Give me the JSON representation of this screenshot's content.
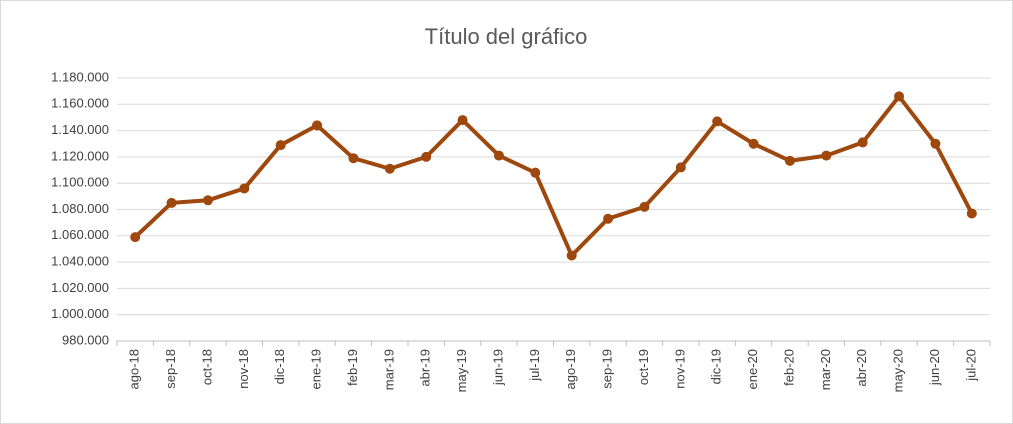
{
  "chart_data": {
    "type": "line",
    "title": "Título del gráfico",
    "categories": [
      "ago-18",
      "sep-18",
      "oct-18",
      "nov-18",
      "dic-18",
      "ene-19",
      "feb-19",
      "mar-19",
      "abr-19",
      "may-19",
      "jun-19",
      "jul-19",
      "ago-19",
      "sep-19",
      "oct-19",
      "nov-19",
      "dic-19",
      "ene-20",
      "feb-20",
      "mar-20",
      "abr-20",
      "may-20",
      "jun-20",
      "jul-20"
    ],
    "series": [
      {
        "color": "#9e480e",
        "values": [
          1059000,
          1085000,
          1087000,
          1096000,
          1129000,
          1144000,
          1119000,
          1111000,
          1120000,
          1148000,
          1121000,
          1108000,
          1045000,
          1073000,
          1082000,
          1112000,
          1147000,
          1130000,
          1117000,
          1121000,
          1131000,
          1166000,
          1130000,
          1077000
        ]
      }
    ],
    "ylim": [
      980000,
      1180000
    ],
    "yticks": [
      {
        "value": 980000,
        "label": "980.000"
      },
      {
        "value": 1000000,
        "label": "1.000.000"
      },
      {
        "value": 1020000,
        "label": "1.020.000"
      },
      {
        "value": 1040000,
        "label": "1.040.000"
      },
      {
        "value": 1060000,
        "label": "1.060.000"
      },
      {
        "value": 1080000,
        "label": "1.080.000"
      },
      {
        "value": 1100000,
        "label": "1.100.000"
      },
      {
        "value": 1120000,
        "label": "1.120.000"
      },
      {
        "value": 1140000,
        "label": "1.140.000"
      },
      {
        "value": 1160000,
        "label": "1.160.000"
      },
      {
        "value": 1180000,
        "label": "1.180.000"
      }
    ],
    "grid": true
  }
}
